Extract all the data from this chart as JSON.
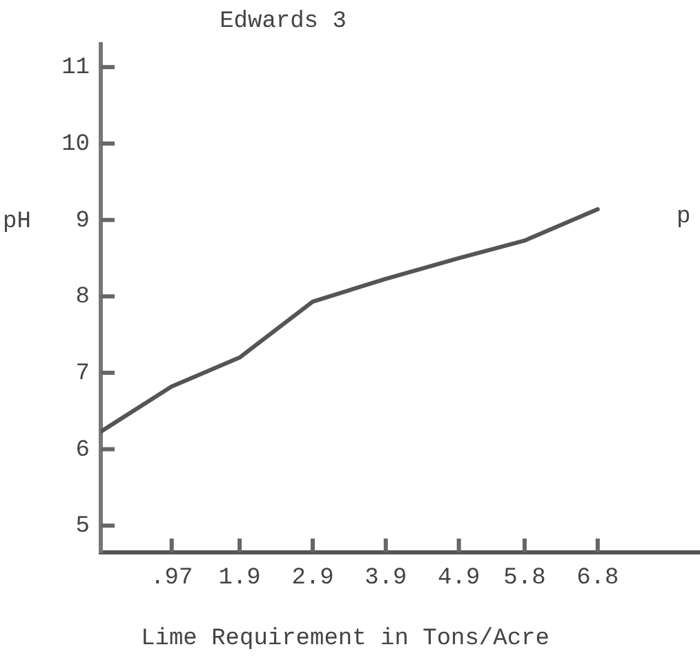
{
  "chart_data": {
    "type": "line",
    "title": "Edwards 3",
    "xlabel": "Lime Requirement in Tons/Acre",
    "ylabel": "pH",
    "annotations": [
      "p"
    ],
    "x": [
      0,
      0.97,
      1.9,
      2.9,
      3.9,
      4.9,
      5.8,
      6.8
    ],
    "series": [
      {
        "color": "#555555",
        "values": [
          6.23,
          6.82,
          7.2,
          7.93,
          8.23,
          8.5,
          8.73,
          9.14
        ]
      }
    ],
    "xlim": [
      0,
      8.2
    ],
    "ylim": [
      4.65,
      11.3
    ],
    "xticks": [
      {
        "value": 0.97,
        "label": ".97"
      },
      1.9,
      2.9,
      3.9,
      4.9,
      5.8,
      6.8
    ],
    "yticks": [
      5,
      6,
      7,
      8,
      9,
      10,
      11
    ],
    "grid": false,
    "legend": false,
    "marker": "none",
    "line_style": "solid"
  }
}
